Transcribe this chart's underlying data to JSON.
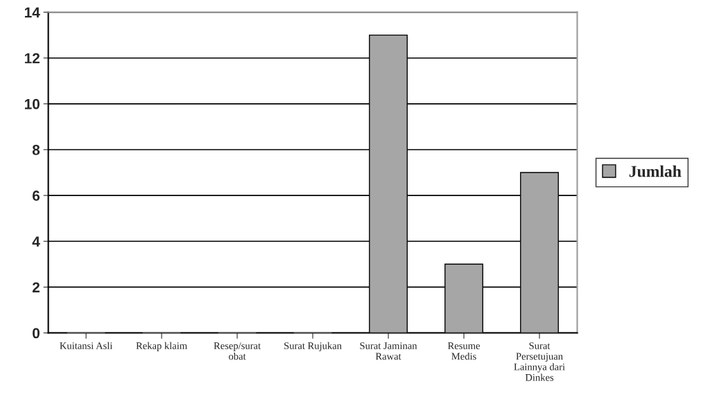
{
  "chart_data": {
    "type": "bar",
    "categories": [
      "Kuitansi Asli",
      "Rekap klaim",
      "Resep/surat\nobat",
      "Surat Rujukan",
      "Surat Jaminan\nRawat",
      "Resume\nMedis",
      "Surat\nPersetujuan\nLainnya dari\nDinkes"
    ],
    "series": [
      {
        "name": "Jumlah",
        "color": "#a6a6a6",
        "values": [
          0,
          0,
          0,
          0,
          13,
          3,
          7
        ]
      }
    ],
    "ylim": [
      0,
      14
    ],
    "yticks": [
      0,
      2,
      4,
      6,
      8,
      10,
      12,
      14
    ],
    "grid": "y",
    "legend": "right"
  }
}
